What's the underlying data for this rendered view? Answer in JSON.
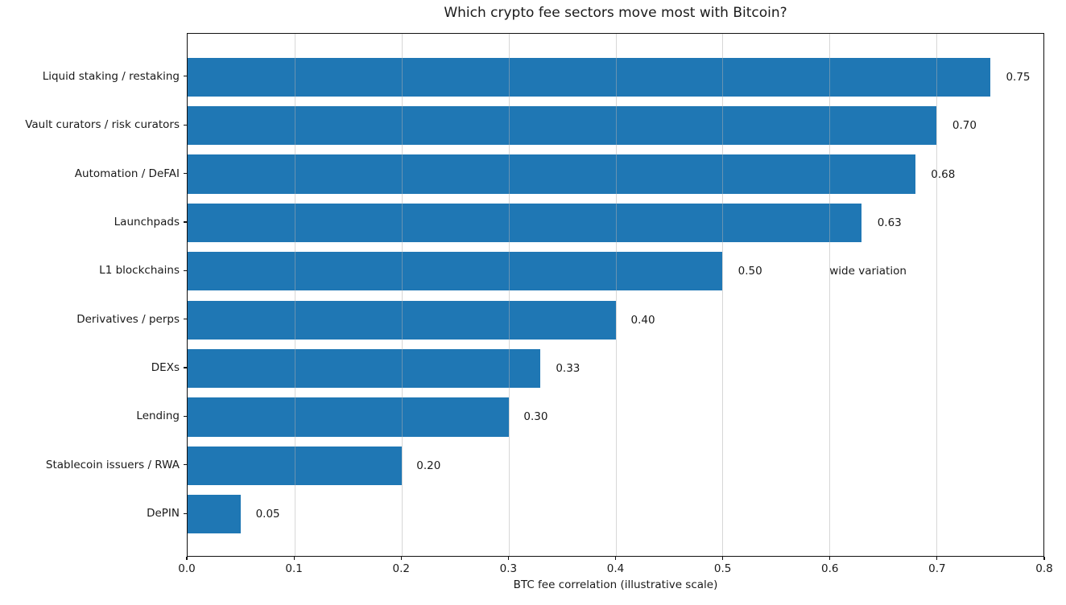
{
  "chart_data": {
    "type": "bar",
    "orientation": "horizontal",
    "title": "Which crypto fee sectors move most with Bitcoin?",
    "xlabel": "BTC fee correlation (illustrative scale)",
    "categories": [
      "Liquid staking / restaking",
      "Vault curators / risk curators",
      "Automation / DeFAI",
      "Launchpads",
      "L1 blockchains",
      "Derivatives / perps",
      "DEXs",
      "Lending",
      "Stablecoin issuers / RWA",
      "DePIN"
    ],
    "values": [
      0.75,
      0.7,
      0.68,
      0.63,
      0.5,
      0.4,
      0.33,
      0.3,
      0.2,
      0.05
    ],
    "value_labels": [
      "0.75",
      "0.70",
      "0.68",
      "0.63",
      "0.50",
      "0.40",
      "0.33",
      "0.30",
      "0.20",
      "0.05"
    ],
    "xlim": [
      0.0,
      0.8
    ],
    "xticks": [
      "0.0",
      "0.1",
      "0.2",
      "0.3",
      "0.4",
      "0.5",
      "0.6",
      "0.7",
      "0.8"
    ],
    "grid": true,
    "legend": null,
    "bar_color": "#1f77b4",
    "annotation": {
      "text": "wide variation",
      "category": "L1 blockchains",
      "x": 0.6
    }
  }
}
